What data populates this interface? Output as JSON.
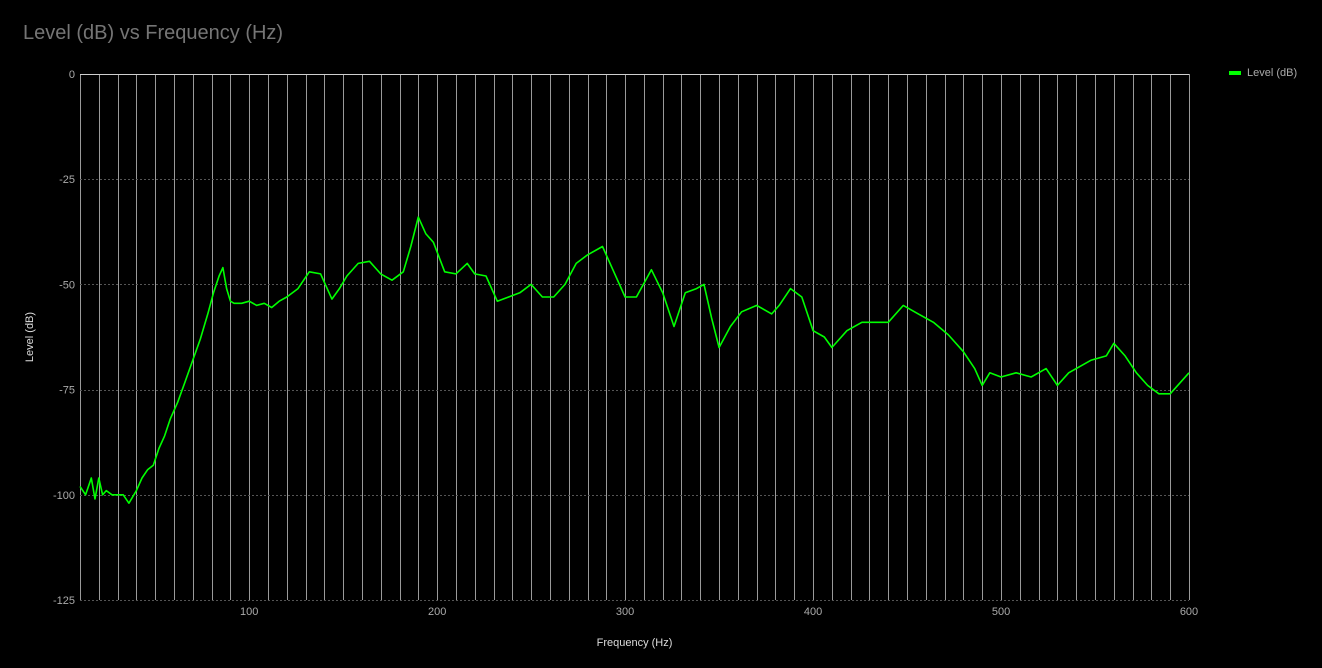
{
  "chart": {
    "title": "Level (dB) vs Frequency (Hz)",
    "legend_label": "Level (dB)",
    "line_color": "#00ff00",
    "background": "#000000"
  },
  "chart_data": {
    "type": "line",
    "title": "Level (dB) vs Frequency (Hz)",
    "xlabel": "Frequency (Hz)",
    "ylabel": "Level (dB)",
    "xlim": [
      10,
      600
    ],
    "ylim": [
      -125,
      0
    ],
    "xticks": [
      100,
      200,
      300,
      400,
      500,
      600
    ],
    "yticks": [
      0,
      -25,
      -50,
      -75,
      -100,
      -125
    ],
    "grid": true,
    "legend_position": "top-right",
    "series": [
      {
        "name": "Level (dB)",
        "color": "#00ff00",
        "x": [
          10,
          13,
          16,
          18,
          20,
          22,
          24,
          27,
          30,
          33,
          36,
          40,
          43,
          46,
          49,
          52,
          55,
          58,
          62,
          66,
          70,
          74,
          78,
          81,
          84,
          86,
          88,
          90,
          92,
          96,
          100,
          104,
          108,
          112,
          116,
          120,
          126,
          132,
          138,
          144,
          148,
          152,
          158,
          164,
          170,
          176,
          182,
          186,
          190,
          194,
          198,
          204,
          210,
          216,
          220,
          226,
          232,
          238,
          244,
          250,
          256,
          262,
          268,
          274,
          280,
          288,
          294,
          300,
          306,
          314,
          320,
          326,
          332,
          338,
          342,
          346,
          350,
          356,
          362,
          370,
          378,
          382,
          388,
          394,
          400,
          406,
          410,
          418,
          426,
          434,
          440,
          448,
          456,
          464,
          472,
          480,
          486,
          490,
          494,
          500,
          508,
          516,
          524,
          530,
          536,
          540,
          548,
          556,
          560,
          566,
          572,
          578,
          584,
          590,
          596,
          600
        ],
        "values": [
          -98,
          -100,
          -96,
          -101,
          -96,
          -100,
          -99,
          -100,
          -100,
          -100,
          -102,
          -99,
          -96,
          -94,
          -93,
          -89,
          -86,
          -82,
          -78,
          -73,
          -68,
          -63,
          -57,
          -52,
          -48,
          -46,
          -51,
          -54,
          -54.5,
          -54.5,
          -54,
          -55,
          -54.5,
          -55.5,
          -54,
          -53,
          -51,
          -47,
          -47.5,
          -53.5,
          -51,
          -48,
          -45,
          -44.5,
          -47.5,
          -49,
          -47,
          -41,
          -34,
          -38,
          -40,
          -47,
          -47.5,
          -45,
          -47.5,
          -48,
          -54,
          -53,
          -52,
          -50,
          -53,
          -53,
          -50,
          -45,
          -43,
          -41,
          -47,
          -53,
          -53,
          -46.5,
          -52,
          -60,
          -52,
          -51,
          -50,
          -58,
          -65,
          -60,
          -56.5,
          -55,
          -57,
          -55,
          -51,
          -53,
          -61,
          -62.5,
          -65,
          -61,
          -59,
          -59,
          -59,
          -55,
          -57,
          -59,
          -62,
          -66,
          -70,
          -74,
          -71,
          -72,
          -71,
          -72,
          -70,
          -74,
          -71,
          -70,
          -68,
          -67,
          -64,
          -67,
          -71,
          -74,
          -76,
          -76,
          -73,
          -71
        ]
      }
    ]
  }
}
